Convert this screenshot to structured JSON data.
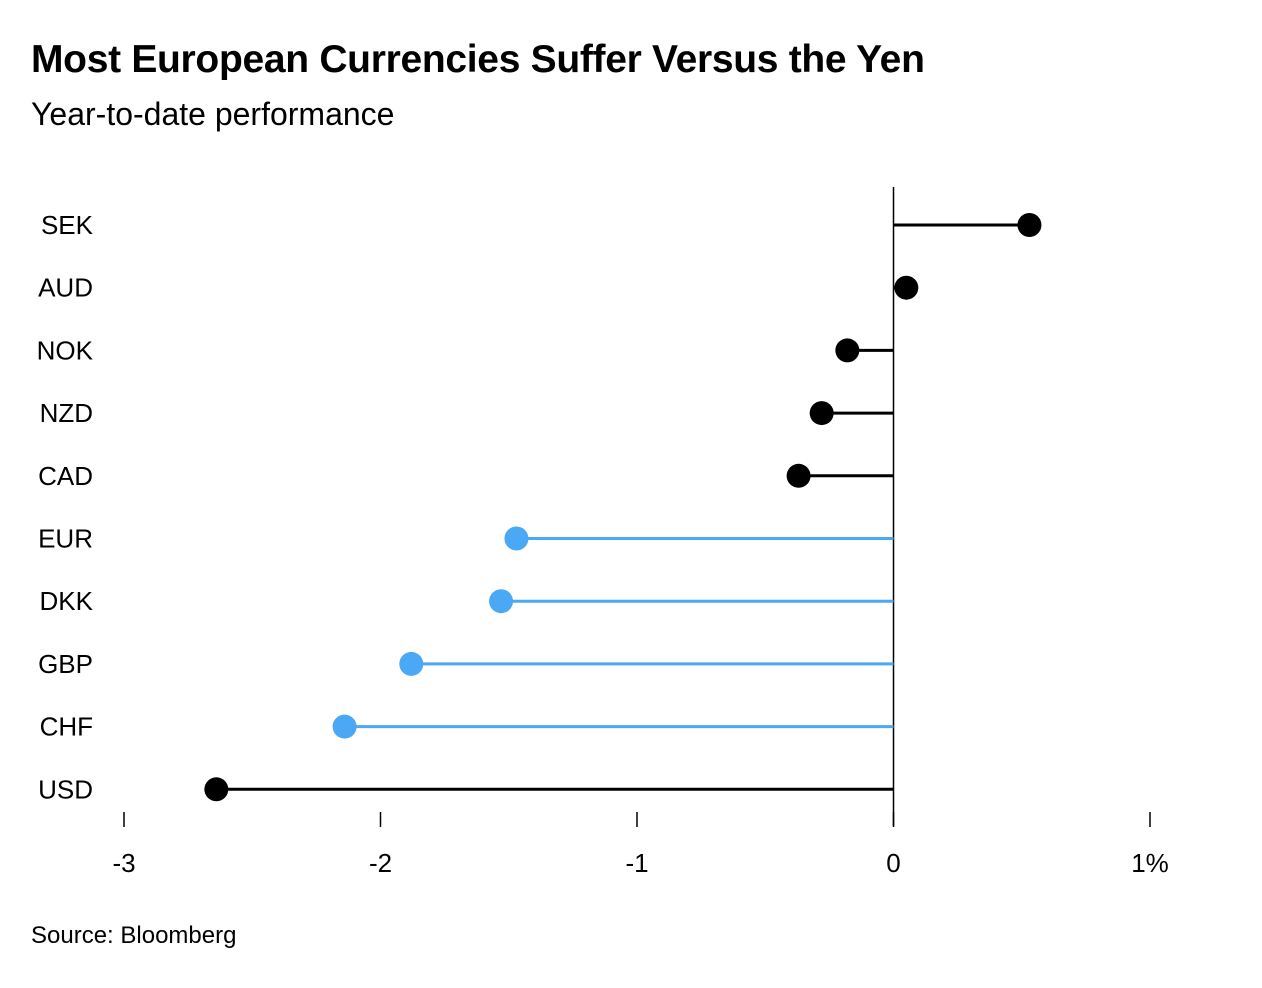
{
  "title": "Most European Currencies Suffer Versus the Yen",
  "subtitle": "Year-to-date performance",
  "source": "Source: Bloomberg",
  "colors": {
    "default": "#000000",
    "european": "#4aa8f5",
    "axis": "#000000"
  },
  "chart_data": {
    "type": "lollipop",
    "orientation": "horizontal",
    "title": "Most European Currencies Suffer Versus the Yen",
    "subtitle": "Year-to-date performance",
    "categories": [
      "SEK",
      "AUD",
      "NOK",
      "NZD",
      "CAD",
      "EUR",
      "DKK",
      "GBP",
      "CHF",
      "USD"
    ],
    "values": [
      0.53,
      0.05,
      -0.18,
      -0.28,
      -0.37,
      -1.47,
      -1.53,
      -1.88,
      -2.14,
      -2.64
    ],
    "highlight": [
      false,
      false,
      false,
      false,
      false,
      true,
      true,
      true,
      true,
      false
    ],
    "xlim": [
      -3,
      1
    ],
    "xticks": [
      -3,
      -2,
      -1,
      0,
      1
    ],
    "xtick_labels": [
      "-3",
      "-2",
      "-1",
      "0",
      "1%"
    ],
    "zero_line": true,
    "grid": false,
    "legend": "none"
  }
}
